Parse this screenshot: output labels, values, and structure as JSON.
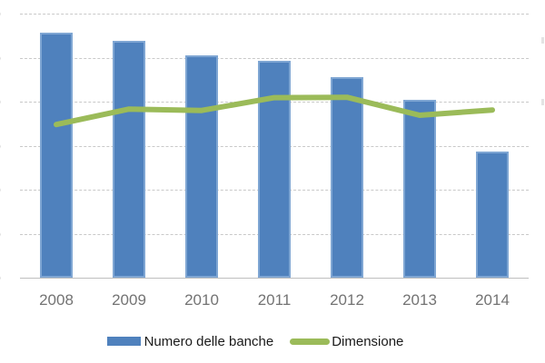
{
  "chart_data": {
    "type": "bar",
    "subtype": "bar-line-combo",
    "title": "",
    "xlabel": "",
    "ylabel": "",
    "categories": [
      "2008",
      "2009",
      "2010",
      "2011",
      "2012",
      "2013",
      "2014"
    ],
    "series": [
      {
        "name": "Numero delle banche",
        "type": "bar",
        "color": "#4f81bd",
        "values": [
          557,
          538,
          505,
          493,
          456,
          404,
          287
        ]
      },
      {
        "name": "Dimensione",
        "type": "line",
        "color": "#9bbb59",
        "values": [
          348,
          383,
          380,
          409,
          410,
          369,
          381
        ]
      }
    ],
    "ylim": [
      0,
      600
    ],
    "y_tick_step": 100,
    "y_tick_label_fragments": [
      "0",
      "0",
      "0",
      "0",
      "0",
      "0",
      "0"
    ],
    "values_estimated_from_gridlines": true,
    "grid": "horizontal-dashed",
    "legend_position": "bottom-center"
  },
  "legend": {
    "items": [
      {
        "label": "Numero delle banche",
        "swatch": "bar",
        "color": "#4f81bd"
      },
      {
        "label": "Dimensione",
        "swatch": "line",
        "color": "#9bbb59"
      }
    ]
  },
  "colors": {
    "bar": "#4f81bd",
    "bar_border": "#7fa6d3",
    "line": "#9bbb59",
    "grid": "#c9c9c9",
    "axis": "#bfbfbf",
    "x_label": "#737373",
    "tick_label": "#7a7a7a",
    "legend_text": "#1a1a1a",
    "background": "#ffffff"
  }
}
